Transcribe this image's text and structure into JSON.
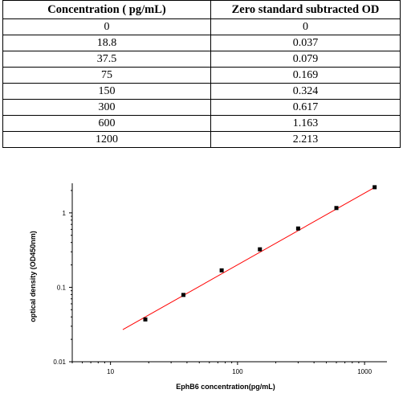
{
  "table": {
    "headers": [
      "Concentration ( pg/mL)",
      "Zero standard subtracted OD"
    ],
    "rows": [
      [
        "0",
        "0"
      ],
      [
        "18.8",
        "0.037"
      ],
      [
        "37.5",
        "0.079"
      ],
      [
        "75",
        "0.169"
      ],
      [
        "150",
        "0.324"
      ],
      [
        "300",
        "0.617"
      ],
      [
        "600",
        "1.163"
      ],
      [
        "1200",
        "2.213"
      ]
    ]
  },
  "chart_data": {
    "type": "scatter",
    "x": [
      18.8,
      37.5,
      75,
      150,
      300,
      600,
      1200
    ],
    "y": [
      0.037,
      0.079,
      0.169,
      0.324,
      0.617,
      1.163,
      2.213
    ],
    "xlabel": "EphB6  concentration(pg/mL)",
    "ylabel": "optical density (OD450nm)",
    "xscale": "log",
    "yscale": "log",
    "xlim": [
      5,
      1500
    ],
    "ylim": [
      0.01,
      2.5
    ],
    "x_ticks": [
      "10",
      "100",
      "1000"
    ],
    "y_ticks": [
      "0.01",
      "0.1",
      "1"
    ],
    "fit_line": {
      "x": [
        12.5,
        1200
      ],
      "y": [
        0.027,
        2.2
      ]
    },
    "grid": false,
    "colors": {
      "points": "#000000",
      "fit": "#ff0000",
      "axis": "#000000"
    }
  }
}
